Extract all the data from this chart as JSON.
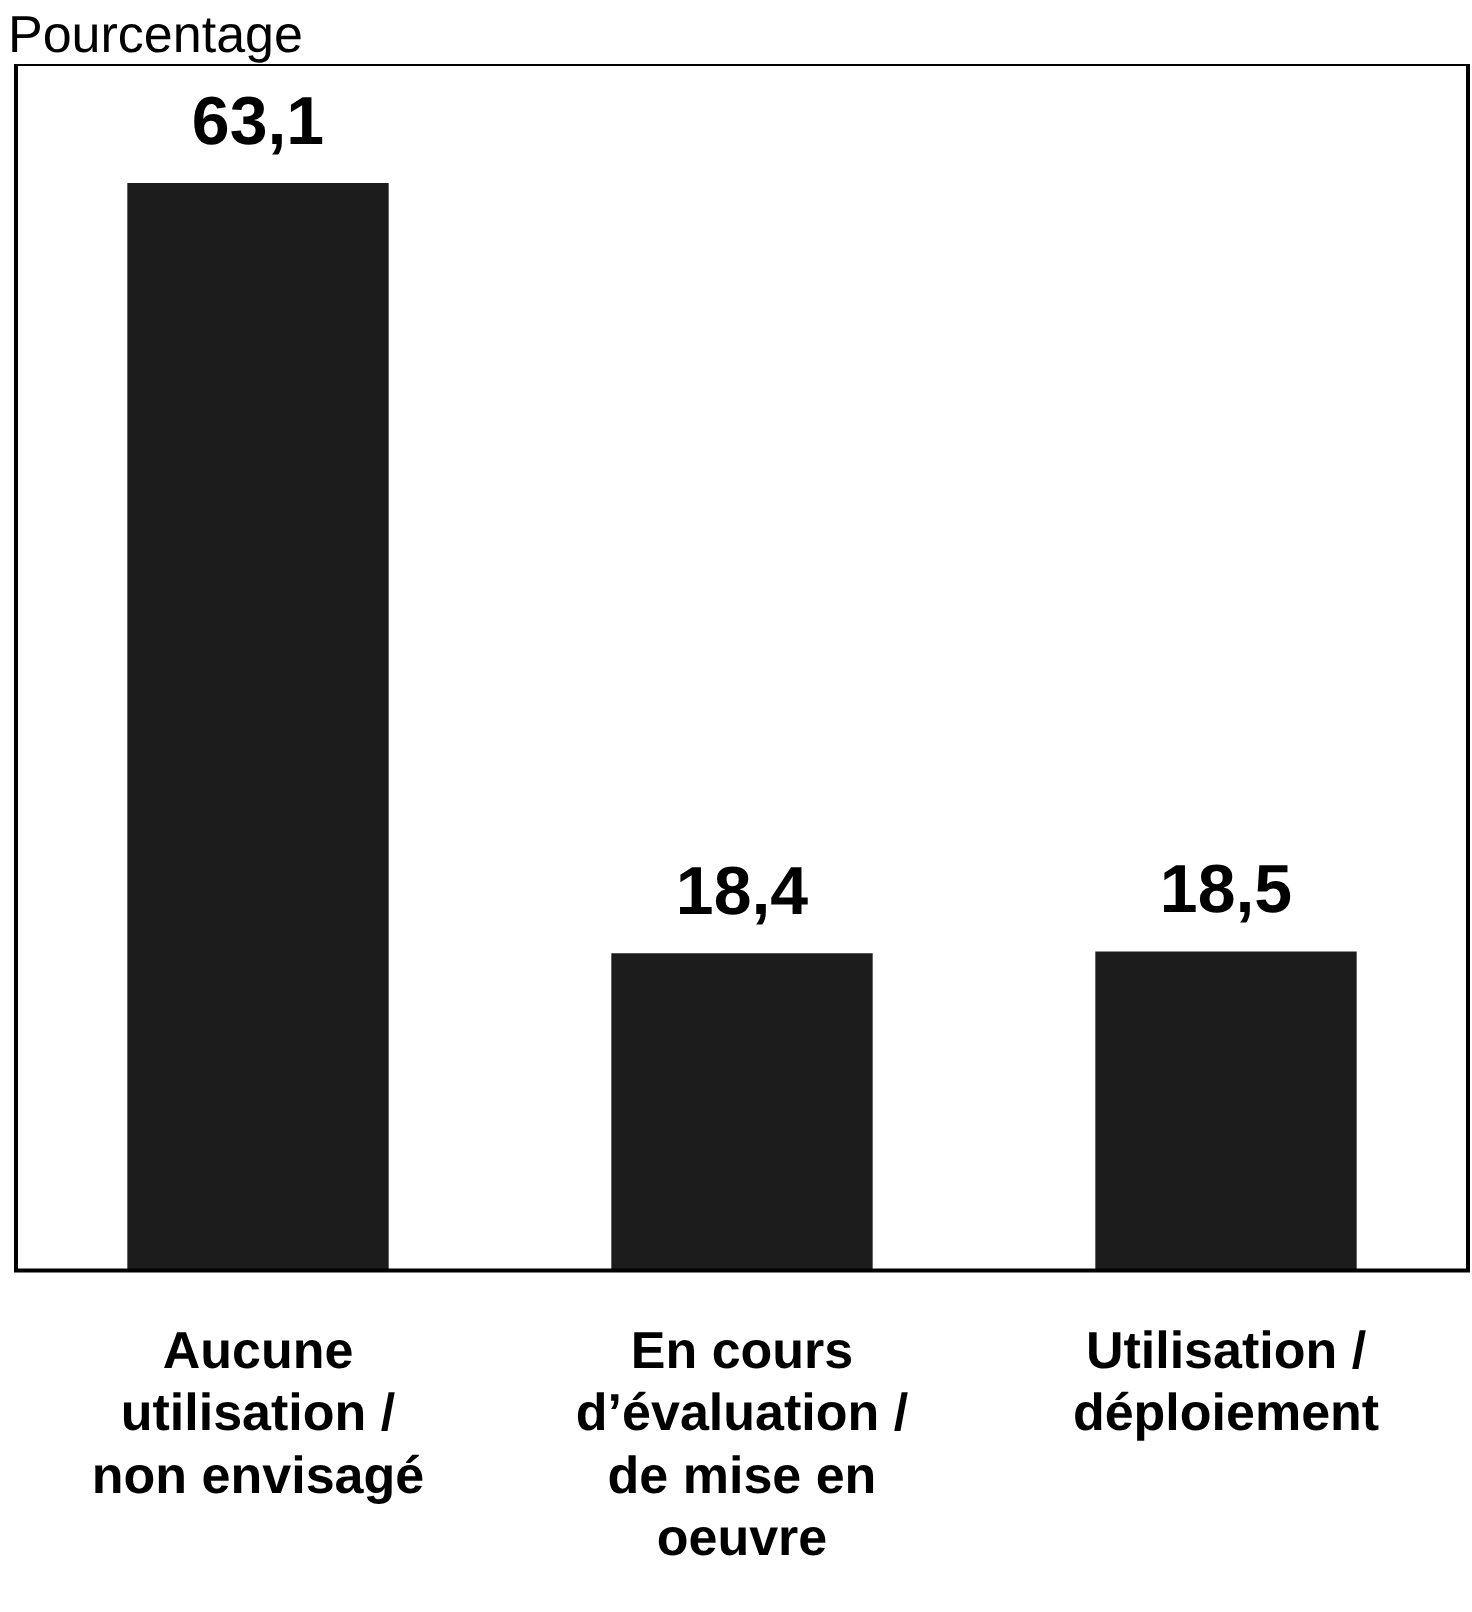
{
  "chart_data": {
    "type": "bar",
    "ylabel": "Pourcentage",
    "categories": [
      "Aucune utilisation / non envisagé",
      "En cours d’évaluation / de mise en oeuvre",
      "Utilisation / déploiement"
    ],
    "values": [
      63.1,
      18.4,
      18.5
    ],
    "value_labels": [
      "63,1",
      "18,4",
      "18,5"
    ],
    "color": "#1c1c1c",
    "grid": false,
    "legend": false
  }
}
